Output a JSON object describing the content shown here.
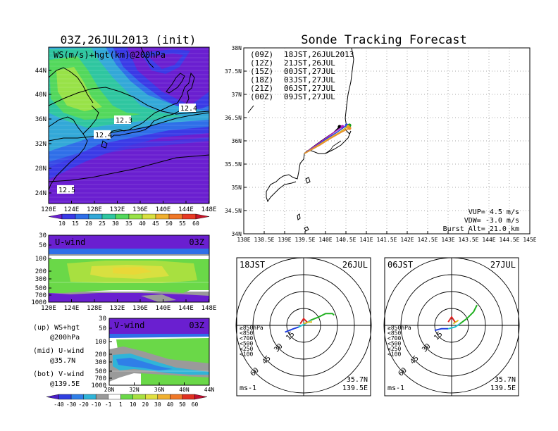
{
  "left_title": "03Z,26JUL2013 (init)",
  "right_title": "Sonde Tracking Forecast",
  "main_map": {
    "label": "WS(m/s)+hgt(km)@200hPa",
    "x_ticks": [
      "120E",
      "124E",
      "128E",
      "132E",
      "136E",
      "140E",
      "144E",
      "148E"
    ],
    "y_ticks": [
      "44N",
      "40N",
      "36N",
      "32N",
      "28N",
      "24N"
    ],
    "contour_labels": [
      "12.3",
      "12.4",
      "12.4",
      "12.5"
    ],
    "colorbar_ticks": [
      "10",
      "15",
      "20",
      "25",
      "30",
      "35",
      "40",
      "45",
      "50",
      "55",
      "60"
    ],
    "colorbar_colors": [
      "#6a1fd0",
      "#3a3ae6",
      "#2f6fe8",
      "#33a8d8",
      "#2fc6a0",
      "#53d85c",
      "#98e248",
      "#d8e040",
      "#f0b030",
      "#f07828",
      "#e83a24",
      "#c81428"
    ]
  },
  "u_panel": {
    "label": "U-wind",
    "time": "03Z",
    "y_ticks": [
      "30",
      "50",
      "100",
      "200",
      "300",
      "500",
      "700",
      "1000"
    ],
    "x_ticks": [
      "120E",
      "124E",
      "128E",
      "132E",
      "136E",
      "140E",
      "144E",
      "148E"
    ]
  },
  "v_panel": {
    "label": "V-wind",
    "time": "03Z",
    "y_ticks": [
      "30",
      "50",
      "100",
      "200",
      "300",
      "500",
      "700",
      "1000"
    ],
    "x_ticks": [
      "28N",
      "32N",
      "36N",
      "40N",
      "44N"
    ]
  },
  "notes": [
    {
      "a": "(up) WS+hgt",
      "b": "@200hPa"
    },
    {
      "a": "(mid) U-wind",
      "b": "@35.7N"
    },
    {
      "a": "(bot) V-wind",
      "b": "@139.5E"
    }
  ],
  "bottom_colorbar": {
    "ticks": [
      "-40",
      "-30",
      "-20",
      "-10",
      "-1",
      "1",
      "10",
      "20",
      "30",
      "40",
      "50",
      "60"
    ],
    "colors": [
      "#4b1ec8",
      "#2f3fe0",
      "#2f7fe8",
      "#30b4d8",
      "#9a9a9a",
      "#ffffff",
      "#6ad848",
      "#a8e040",
      "#e0e040",
      "#f0b030",
      "#f07828",
      "#e03020",
      "#c01030"
    ]
  },
  "track_map": {
    "x_ticks": [
      "138E",
      "138.5E",
      "139E",
      "139.5E",
      "140E",
      "140.5E",
      "141E",
      "141.5E",
      "142E",
      "142.5E",
      "143E",
      "143.5E",
      "144E",
      "144.5E",
      "145E"
    ],
    "y_ticks": [
      "38N",
      "37.5N",
      "37N",
      "36.5N",
      "36N",
      "35.5N",
      "35N",
      "34.5N",
      "34N"
    ],
    "legend": [
      {
        "z": "(09Z)",
        "jst": "18JST,26JUL2013",
        "color": "#000000"
      },
      {
        "z": "(12Z)",
        "jst": "21JST,26JUL",
        "color": "#b01fc0"
      },
      {
        "z": "(15Z)",
        "jst": "00JST,27JUL",
        "color": "#2a46e0"
      },
      {
        "z": "(18Z)",
        "jst": "03JST,27JUL",
        "color": "#1aa01a"
      },
      {
        "z": "(21Z)",
        "jst": "06JST,27JUL",
        "color": "#e8b020"
      },
      {
        "z": "(00Z)",
        "jst": "09JST,27JUL",
        "color": "#e89030"
      }
    ],
    "params": [
      "VUP= 4.5 m/s",
      "VDW= -3.0 m/s",
      "Burst Alt= 21.0 km"
    ]
  },
  "hodographs": [
    {
      "jst": "18JST",
      "date": "26JUL",
      "lat": "35.7N",
      "lon": "139.5E",
      "unit": "ms-1",
      "ring_labels": [
        "15",
        "30",
        "45",
        "60"
      ]
    },
    {
      "jst": "06JST",
      "date": "27JUL",
      "lat": "35.7N",
      "lon": "139.5E",
      "unit": "ms-1",
      "ring_labels": [
        "15",
        "30",
        "45",
        "60"
      ]
    }
  ],
  "hodo_legend": [
    {
      "text": "≥850hPa",
      "color": "#e02020"
    },
    {
      "text": "<850",
      "color": "#f08020"
    },
    {
      "text": "<700",
      "color": "#d8c020"
    },
    {
      "text": "<500",
      "color": "#20b020"
    },
    {
      "text": "<250",
      "color": "#20c0d0"
    },
    {
      "text": "<100",
      "color": "#2040e0"
    }
  ]
}
